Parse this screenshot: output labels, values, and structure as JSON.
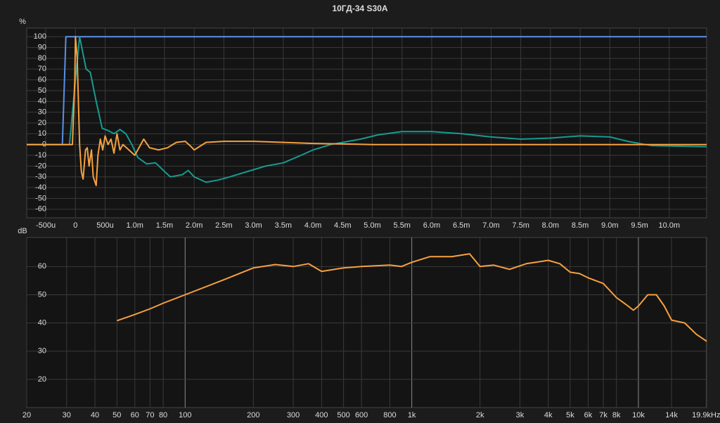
{
  "title": "10ГД-34 S30A",
  "chart_data": [
    {
      "type": "line",
      "y_label": "%",
      "grid": true,
      "log_x": false,
      "xlim": [
        -0.82,
        10.63
      ],
      "ylim": [
        -68,
        108
      ],
      "xticks": [
        {
          "value": -0.5,
          "label": "-500u"
        },
        0,
        {
          "value": 0.5,
          "label": "500u"
        },
        {
          "value": 1,
          "label": "1.0m"
        },
        {
          "value": 1.5,
          "label": "1.5m"
        },
        {
          "value": 2,
          "label": "2.0m"
        },
        {
          "value": 2.5,
          "label": "2.5m"
        },
        {
          "value": 3,
          "label": "3.0m"
        },
        {
          "value": 3.5,
          "label": "3.5m"
        },
        {
          "value": 4,
          "label": "4.0m"
        },
        {
          "value": 4.5,
          "label": "4.5m"
        },
        {
          "value": 5,
          "label": "5.0m"
        },
        {
          "value": 5.5,
          "label": "5.5m"
        },
        {
          "value": 6,
          "label": "6.0m"
        },
        {
          "value": 6.5,
          "label": "6.5m"
        },
        {
          "value": 7,
          "label": "7.0m"
        },
        {
          "value": 7.5,
          "label": "7.5m"
        },
        {
          "value": 8,
          "label": "8.0m"
        },
        {
          "value": 8.5,
          "label": "8.5m"
        },
        {
          "value": 9,
          "label": "9.0m"
        },
        {
          "value": 9.5,
          "label": "9.5m"
        },
        {
          "value": 10,
          "label": "10.0m"
        }
      ],
      "yticks": [
        100,
        90,
        80,
        70,
        60,
        50,
        40,
        30,
        20,
        10,
        0,
        -10,
        -20,
        -30,
        -40,
        -50,
        -60
      ],
      "series": [
        {
          "color": "#5b8fe6",
          "x": [
            -0.82,
            -0.22,
            -0.16,
            10.63
          ],
          "values": [
            0,
            0,
            100,
            100
          ]
        },
        {
          "color": "#179b90",
          "x": [
            -0.82,
            -0.1,
            0.0,
            0.07,
            0.18,
            0.25,
            0.35,
            0.45,
            0.55,
            0.65,
            0.75,
            0.85,
            0.95,
            1.05,
            1.2,
            1.35,
            1.5,
            1.6,
            1.8,
            1.9,
            2.0,
            2.2,
            2.4,
            2.6,
            2.9,
            3.2,
            3.5,
            3.8,
            4.0,
            4.3,
            4.6,
            4.8,
            5.1,
            5.5,
            6.0,
            6.5,
            7.0,
            7.5,
            8.0,
            8.5,
            9.0,
            9.3,
            9.7,
            10.63
          ],
          "values": [
            0,
            0,
            60,
            100,
            70,
            67,
            40,
            15,
            13,
            10,
            14,
            10,
            0,
            -12,
            -18,
            -17,
            -25,
            -30,
            -28,
            -24,
            -30,
            -35,
            -33,
            -30,
            -25,
            -20,
            -17,
            -10,
            -5,
            0,
            3,
            5,
            9,
            12,
            12,
            10,
            7,
            5,
            6,
            8,
            7,
            3,
            -1,
            -2
          ]
        },
        {
          "color": "#f5a040",
          "x": [
            -0.82,
            -0.05,
            -0.01,
            0.0,
            0.03,
            0.07,
            0.1,
            0.13,
            0.17,
            0.2,
            0.23,
            0.27,
            0.3,
            0.35,
            0.38,
            0.42,
            0.46,
            0.5,
            0.55,
            0.6,
            0.65,
            0.7,
            0.75,
            0.8,
            0.9,
            1.0,
            1.05,
            1.15,
            1.25,
            1.4,
            1.55,
            1.7,
            1.85,
            1.95,
            2.0,
            2.2,
            2.5,
            3.0,
            3.5,
            4.0,
            5.0,
            6.0,
            7.0,
            8.0,
            9.0,
            10.0,
            10.63
          ],
          "values": [
            0,
            0,
            60,
            100,
            80,
            0,
            -25,
            -32,
            -5,
            -3,
            -20,
            -5,
            -30,
            -38,
            -10,
            5,
            -5,
            8,
            0,
            5,
            -8,
            10,
            -5,
            0,
            -5,
            -10,
            -5,
            5,
            -3,
            -5,
            -3,
            2,
            3,
            -2,
            -5,
            2,
            3,
            3,
            2,
            1,
            0,
            0,
            0,
            0,
            0,
            0,
            0
          ]
        }
      ]
    },
    {
      "type": "line",
      "y_label": "dB",
      "grid": true,
      "log_x": true,
      "xlim": [
        20,
        20000
      ],
      "ylim": [
        10,
        70.3
      ],
      "xticks": [
        20,
        30,
        40,
        50,
        60,
        70,
        80,
        100,
        200,
        300,
        400,
        500,
        600,
        800,
        {
          "value": 1000,
          "label": "1k"
        },
        {
          "value": 2000,
          "label": "2k"
        },
        {
          "value": 3000,
          "label": "3k"
        },
        {
          "value": 4000,
          "label": "4k"
        },
        {
          "value": 5000,
          "label": "5k"
        },
        {
          "value": 6000,
          "label": "6k"
        },
        {
          "value": 7000,
          "label": "7k"
        },
        {
          "value": 8000,
          "label": "8k"
        },
        {
          "value": 10000,
          "label": "10k"
        },
        {
          "value": 14000,
          "label": "14k"
        },
        {
          "value": 19900,
          "label": "19.9kHz"
        }
      ],
      "yticks": [
        60,
        50,
        40,
        30,
        20
      ],
      "series": [
        {
          "color": "#f5a040",
          "x": [
            50,
            60,
            70,
            80,
            100,
            150,
            200,
            250,
            300,
            350,
            400,
            500,
            600,
            800,
            900,
            1000,
            1200,
            1500,
            1800,
            2000,
            2300,
            2700,
            3200,
            4000,
            4500,
            5000,
            5500,
            6000,
            7000,
            8000,
            9000,
            9500,
            10000,
            11000,
            12000,
            13000,
            14000,
            16000,
            18000,
            20000
          ],
          "values": [
            40.8,
            43,
            45,
            47,
            50,
            55.5,
            59.5,
            60.7,
            60,
            61,
            58.3,
            59.5,
            60,
            60.5,
            60,
            61.5,
            63.5,
            63.5,
            64.5,
            60,
            60.5,
            59,
            61,
            62.2,
            61,
            58,
            57.5,
            56,
            54,
            49,
            46,
            44.5,
            46,
            50,
            50,
            46,
            41,
            40,
            36,
            33.5
          ]
        }
      ]
    }
  ]
}
